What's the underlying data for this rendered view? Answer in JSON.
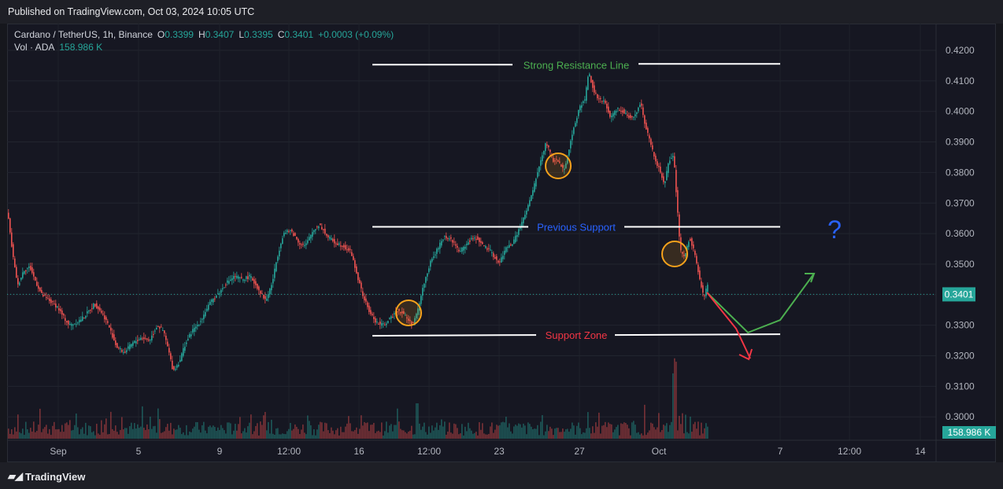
{
  "header": {
    "published": "Published on TradingView.com, Oct 03, 2024 10:05 UTC"
  },
  "legend": {
    "symbol": "Cardano / TetherUS, 1h, Binance",
    "open_label": "O",
    "open": "0.3399",
    "high_label": "H",
    "high": "0.3407",
    "low_label": "L",
    "low": "0.3395",
    "close_label": "C",
    "close": "0.3401",
    "change": "+0.0003 (+0.09%)",
    "vol_label": "Vol · ADA",
    "vol_value": "158.986 K"
  },
  "footer": {
    "brand": "TradingView",
    "logo_icon": "tradingview-logo-icon"
  },
  "colors": {
    "up": "#26a69a",
    "down": "#ef5350",
    "resistance_text": "#4caf50",
    "previous_support_text": "#2962ff",
    "support_text": "#f23645",
    "circle": "#f7a21b",
    "question": "#2962ff",
    "last_price_bg": "#26a69a"
  },
  "chart_data": {
    "type": "candlestick",
    "symbol": "Cardano / TetherUS",
    "interval": "1h",
    "exchange": "Binance",
    "last_price": "0.3401",
    "last_volume": "158.986 K",
    "y_ticks": [
      "0.4200",
      "0.4100",
      "0.4000",
      "0.3900",
      "0.3800",
      "0.3700",
      "0.3600",
      "0.3500",
      "0.3400",
      "0.3300",
      "0.3200",
      "0.3100",
      "0.3000"
    ],
    "ylim": [
      0.2935,
      0.4265
    ],
    "x_ticks": [
      "Sep",
      "5",
      "9",
      "12:00",
      "16",
      "12:00",
      "23",
      "27",
      "Oct",
      "7",
      "12:00",
      "14"
    ],
    "price_path": [
      [
        0,
        0.366
      ],
      [
        2,
        0.367
      ],
      [
        5,
        0.36
      ],
      [
        10,
        0.35
      ],
      [
        15,
        0.343
      ],
      [
        22,
        0.348
      ],
      [
        30,
        0.349
      ],
      [
        38,
        0.344
      ],
      [
        45,
        0.34
      ],
      [
        55,
        0.338
      ],
      [
        65,
        0.336
      ],
      [
        72,
        0.333
      ],
      [
        80,
        0.33
      ],
      [
        90,
        0.331
      ],
      [
        100,
        0.333
      ],
      [
        112,
        0.337
      ],
      [
        122,
        0.334
      ],
      [
        130,
        0.33
      ],
      [
        140,
        0.323
      ],
      [
        150,
        0.321
      ],
      [
        160,
        0.324
      ],
      [
        172,
        0.326
      ],
      [
        182,
        0.325
      ],
      [
        192,
        0.33
      ],
      [
        200,
        0.328
      ],
      [
        206,
        0.322
      ],
      [
        212,
        0.315
      ],
      [
        220,
        0.318
      ],
      [
        226,
        0.323
      ],
      [
        236,
        0.328
      ],
      [
        246,
        0.331
      ],
      [
        256,
        0.336
      ],
      [
        264,
        0.339
      ],
      [
        272,
        0.341
      ],
      [
        280,
        0.344
      ],
      [
        290,
        0.346
      ],
      [
        300,
        0.345
      ],
      [
        310,
        0.346
      ],
      [
        320,
        0.342
      ],
      [
        330,
        0.338
      ],
      [
        338,
        0.344
      ],
      [
        344,
        0.352
      ],
      [
        352,
        0.36
      ],
      [
        362,
        0.361
      ],
      [
        372,
        0.357
      ],
      [
        380,
        0.356
      ],
      [
        390,
        0.361
      ],
      [
        398,
        0.363
      ],
      [
        408,
        0.359
      ],
      [
        418,
        0.357
      ],
      [
        428,
        0.356
      ],
      [
        438,
        0.354
      ],
      [
        446,
        0.346
      ],
      [
        454,
        0.339
      ],
      [
        462,
        0.334
      ],
      [
        470,
        0.331
      ],
      [
        478,
        0.33
      ],
      [
        488,
        0.332
      ],
      [
        496,
        0.335
      ],
      [
        504,
        0.334
      ],
      [
        510,
        0.332
      ],
      [
        516,
        0.33
      ],
      [
        522,
        0.334
      ],
      [
        530,
        0.343
      ],
      [
        538,
        0.35
      ],
      [
        546,
        0.354
      ],
      [
        556,
        0.359
      ],
      [
        566,
        0.358
      ],
      [
        576,
        0.354
      ],
      [
        586,
        0.357
      ],
      [
        596,
        0.359
      ],
      [
        606,
        0.356
      ],
      [
        616,
        0.354
      ],
      [
        626,
        0.35
      ],
      [
        634,
        0.355
      ],
      [
        644,
        0.357
      ],
      [
        654,
        0.363
      ],
      [
        662,
        0.368
      ],
      [
        670,
        0.375
      ],
      [
        678,
        0.383
      ],
      [
        686,
        0.39
      ],
      [
        694,
        0.384
      ],
      [
        700,
        0.384
      ],
      [
        708,
        0.381
      ],
      [
        714,
        0.386
      ],
      [
        720,
        0.394
      ],
      [
        728,
        0.401
      ],
      [
        735,
        0.404
      ],
      [
        740,
        0.413
      ],
      [
        746,
        0.407
      ],
      [
        752,
        0.404
      ],
      [
        760,
        0.403
      ],
      [
        768,
        0.398
      ],
      [
        776,
        0.401
      ],
      [
        784,
        0.4
      ],
      [
        792,
        0.398
      ],
      [
        800,
        0.399
      ],
      [
        806,
        0.403
      ],
      [
        812,
        0.395
      ],
      [
        818,
        0.39
      ],
      [
        824,
        0.384
      ],
      [
        830,
        0.381
      ],
      [
        836,
        0.376
      ],
      [
        842,
        0.384
      ],
      [
        848,
        0.385
      ],
      [
        852,
        0.37
      ],
      [
        856,
        0.355
      ],
      [
        862,
        0.352
      ],
      [
        868,
        0.359
      ],
      [
        874,
        0.354
      ],
      [
        880,
        0.346
      ],
      [
        886,
        0.339
      ],
      [
        892,
        0.344
      ],
      [
        898,
        0.34
      ]
    ]
  }
}
